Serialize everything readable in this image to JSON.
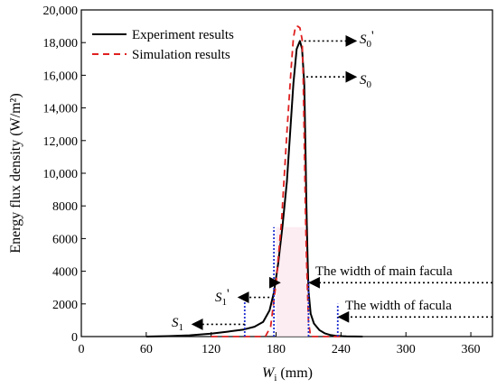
{
  "chart_data": {
    "type": "line",
    "xlabel": "",
    "xlabel_main": "W",
    "xlabel_sub": "i",
    "xlabel_unit": " (mm)",
    "ylabel": "Energy flux density (W/m²)",
    "xlim": [
      0,
      380
    ],
    "ylim": [
      0,
      20000
    ],
    "x_ticks": [
      0,
      60,
      120,
      180,
      240,
      300,
      360
    ],
    "x_tick_labels": [
      "0",
      "60",
      "120",
      "180",
      "240",
      "300",
      "360"
    ],
    "y_ticks": [
      0,
      2000,
      4000,
      6000,
      8000,
      10000,
      12000,
      14000,
      16000,
      18000,
      20000
    ],
    "y_tick_labels": [
      "0",
      "2000",
      "4000",
      "6000",
      "8000",
      "10,000",
      "12,000",
      "14,000",
      "16,000",
      "18,000",
      "20,000"
    ],
    "legend_position": "top-left",
    "series": [
      {
        "name": "Experiment results",
        "color": "#000000",
        "style": "solid",
        "x": [
          60,
          80,
          100,
          120,
          135,
          150,
          160,
          168,
          174,
          178,
          182,
          186,
          190,
          193,
          196,
          199,
          202,
          204,
          206,
          207,
          208,
          209,
          210,
          212,
          215,
          220,
          225,
          230,
          235,
          245,
          260
        ],
        "y": [
          0,
          30,
          80,
          180,
          300,
          430,
          600,
          900,
          1600,
          2700,
          4500,
          6800,
          9500,
          12500,
          15500,
          17600,
          18100,
          17600,
          15500,
          12000,
          8000,
          5000,
          2800,
          1400,
          800,
          400,
          200,
          100,
          50,
          10,
          0
        ]
      },
      {
        "name": "Simulation results",
        "color": "#e02020",
        "style": "dashed",
        "x": [
          120,
          150,
          170,
          175,
          178,
          180,
          185,
          190,
          194,
          196,
          198,
          200,
          202,
          204,
          205,
          206,
          207,
          208,
          209,
          210,
          212,
          240
        ],
        "y": [
          0,
          0,
          0,
          600,
          2200,
          3300,
          7000,
          12500,
          16500,
          18300,
          19000,
          19000,
          18900,
          18200,
          16000,
          12000,
          8000,
          5000,
          2800,
          900,
          0,
          0
        ]
      }
    ],
    "annotations": {
      "s0p_base": "S",
      "s0p_sub": "0",
      "s0p_prime": "'",
      "s0_base": "S",
      "s0_sub": "0",
      "s1p_base": "S",
      "s1p_sub": "1",
      "s1p_prime": "'",
      "s1_base": "S",
      "s1_sub": "1",
      "main_width_text": "The width of main facula",
      "width_text": "The width of facula"
    },
    "markers": {
      "s0p_level": 18100,
      "s0_level": 15900,
      "s1p_level": 2400,
      "s1_level": 750,
      "main_facula_level": 3300,
      "facula_level": 1200,
      "main_facula_x": [
        180,
        210
      ],
      "facula_x": [
        151,
        237
      ],
      "blue_lines": [
        {
          "x": 151,
          "y": [
            0,
            2300
          ]
        },
        {
          "x": 178,
          "y": [
            0,
            6700
          ]
        },
        {
          "x": 210,
          "y": [
            0,
            3400
          ]
        },
        {
          "x": 237,
          "y": [
            0,
            2000
          ]
        }
      ]
    }
  }
}
